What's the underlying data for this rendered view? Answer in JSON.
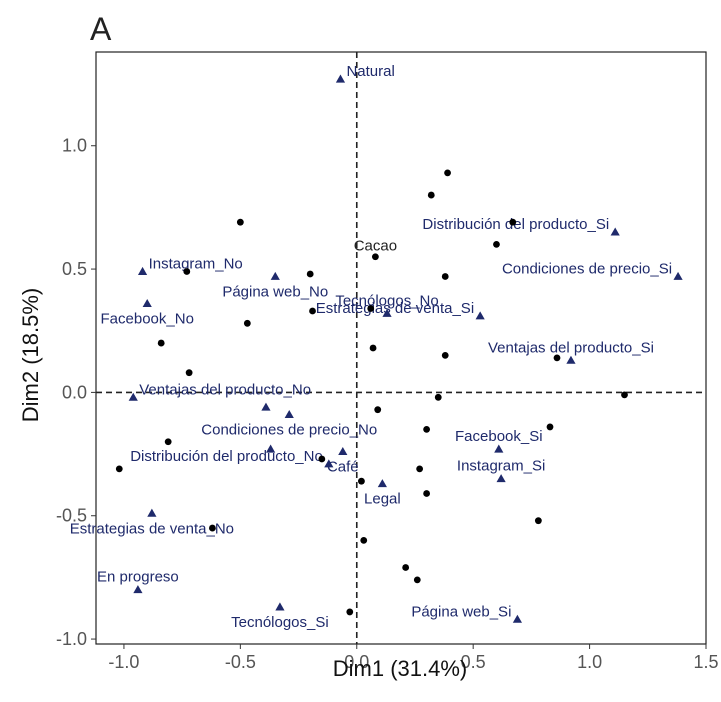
{
  "panel_letter": "A",
  "chart_data": {
    "type": "scatter",
    "xlabel": "Dim1 (31.4%)",
    "ylabel": "Dim2 (18.5%)",
    "xlim": [
      -1.12,
      1.5
    ],
    "ylim": [
      -1.02,
      1.38
    ],
    "x_ticks": [
      -1.0,
      -0.5,
      0.0,
      0.5,
      1.0,
      1.5
    ],
    "y_ticks": [
      -1.0,
      -0.5,
      0.0,
      0.5,
      1.0
    ],
    "x_tick_labels": [
      "-1.0",
      "-0.5",
      "0.0",
      "0.5",
      "1.0",
      "1.5"
    ],
    "y_tick_labels": [
      "-1.0",
      "-0.5",
      "0.0",
      "0.5",
      "1.0"
    ],
    "grid": false,
    "reference_lines": {
      "x": 0,
      "y": 0,
      "style": "dashed"
    },
    "colors": {
      "individuals": "#000000",
      "categories": "#1f2a6b"
    },
    "series": [
      {
        "marker": "triangle",
        "points": [
          {
            "x": -0.07,
            "y": 1.27,
            "label": "Natural",
            "label_pos": "right"
          },
          {
            "x": 1.11,
            "y": 0.65,
            "label": "Distribución del producto_Si",
            "label_pos": "left"
          },
          {
            "x": 1.38,
            "y": 0.47,
            "label": "Condiciones de precio_Si",
            "label_pos": "left"
          },
          {
            "x": -0.92,
            "y": 0.49,
            "label": "Instagram_No",
            "label_pos": "right"
          },
          {
            "x": -0.35,
            "y": 0.47,
            "label": "Página web_No",
            "label_pos": "below"
          },
          {
            "x": 0.13,
            "y": 0.32,
            "label": "Tecnólogos_No",
            "label_pos": "above"
          },
          {
            "x": -0.9,
            "y": 0.36,
            "label": "Facebook_No",
            "label_pos": "below"
          },
          {
            "x": 0.53,
            "y": 0.31,
            "label": "Estrategias de venta_Si",
            "label_pos": "left"
          },
          {
            "x": 0.92,
            "y": 0.13,
            "label": "Ventajas del producto_Si",
            "label_pos": "above"
          },
          {
            "x": -0.96,
            "y": -0.02,
            "label": "Ventajas del producto_No",
            "label_pos": "right"
          },
          {
            "x": -0.39,
            "y": -0.06,
            "label": "",
            "label_pos": "none"
          },
          {
            "x": -0.29,
            "y": -0.09,
            "label": "Condiciones de precio_No",
            "label_pos": "below"
          },
          {
            "x": -0.06,
            "y": -0.24,
            "label": "Café",
            "label_pos": "below"
          },
          {
            "x": 0.61,
            "y": -0.23,
            "label": "Facebook_Si",
            "label_pos": "above"
          },
          {
            "x": 0.62,
            "y": -0.35,
            "label": "Instagram_Si",
            "label_pos": "above"
          },
          {
            "x": -0.37,
            "y": -0.23,
            "label": "",
            "label_pos": "none"
          },
          {
            "x": -0.12,
            "y": -0.29,
            "label": "Distribución del producto_No",
            "label_pos": "left"
          },
          {
            "x": 0.11,
            "y": -0.37,
            "label": "Legal",
            "label_pos": "below"
          },
          {
            "x": -0.88,
            "y": -0.49,
            "label": "Estrategias de venta_No",
            "label_pos": "below"
          },
          {
            "x": -0.94,
            "y": -0.8,
            "label": "En progreso",
            "label_pos": "above"
          },
          {
            "x": -0.33,
            "y": -0.87,
            "label": "Tecnólogos_Si",
            "label_pos": "below"
          },
          {
            "x": 0.69,
            "y": -0.92,
            "label": "Página web_Si",
            "label_pos": "left"
          }
        ]
      },
      {
        "marker": "circle",
        "points": [
          {
            "x": 0.39,
            "y": 0.89,
            "label": ""
          },
          {
            "x": 0.32,
            "y": 0.8,
            "label": ""
          },
          {
            "x": -0.5,
            "y": 0.69,
            "label": ""
          },
          {
            "x": 0.67,
            "y": 0.69,
            "label": ""
          },
          {
            "x": 0.6,
            "y": 0.6,
            "label": ""
          },
          {
            "x": 0.08,
            "y": 0.55,
            "label": "Cacao"
          },
          {
            "x": -0.73,
            "y": 0.49,
            "label": ""
          },
          {
            "x": -0.2,
            "y": 0.48,
            "label": ""
          },
          {
            "x": 0.38,
            "y": 0.47,
            "label": ""
          },
          {
            "x": 0.06,
            "y": 0.34,
            "label": ""
          },
          {
            "x": -0.19,
            "y": 0.33,
            "label": ""
          },
          {
            "x": -0.47,
            "y": 0.28,
            "label": ""
          },
          {
            "x": -0.84,
            "y": 0.2,
            "label": ""
          },
          {
            "x": 0.07,
            "y": 0.18,
            "label": ""
          },
          {
            "x": 0.38,
            "y": 0.15,
            "label": ""
          },
          {
            "x": 0.86,
            "y": 0.14,
            "label": ""
          },
          {
            "x": -0.72,
            "y": 0.08,
            "label": ""
          },
          {
            "x": 0.35,
            "y": -0.02,
            "label": ""
          },
          {
            "x": 1.15,
            "y": -0.01,
            "label": ""
          },
          {
            "x": 0.09,
            "y": -0.07,
            "label": ""
          },
          {
            "x": 0.3,
            "y": -0.15,
            "label": ""
          },
          {
            "x": 0.83,
            "y": -0.14,
            "label": ""
          },
          {
            "x": -0.81,
            "y": -0.2,
            "label": ""
          },
          {
            "x": -1.02,
            "y": -0.31,
            "label": ""
          },
          {
            "x": -0.15,
            "y": -0.27,
            "label": ""
          },
          {
            "x": 0.27,
            "y": -0.31,
            "label": ""
          },
          {
            "x": 0.02,
            "y": -0.36,
            "label": ""
          },
          {
            "x": 0.3,
            "y": -0.41,
            "label": ""
          },
          {
            "x": 0.78,
            "y": -0.52,
            "label": ""
          },
          {
            "x": -0.62,
            "y": -0.55,
            "label": ""
          },
          {
            "x": 0.03,
            "y": -0.6,
            "label": ""
          },
          {
            "x": 0.21,
            "y": -0.71,
            "label": ""
          },
          {
            "x": 0.26,
            "y": -0.76,
            "label": ""
          },
          {
            "x": -0.03,
            "y": -0.89,
            "label": ""
          }
        ]
      }
    ]
  }
}
